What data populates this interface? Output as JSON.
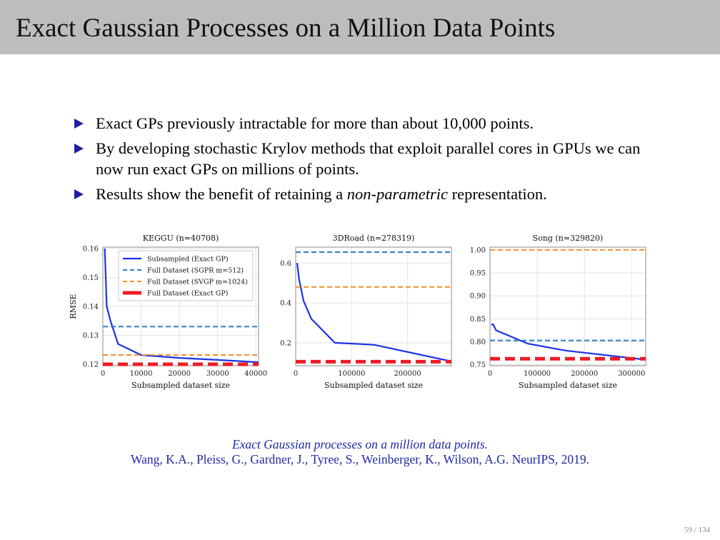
{
  "slide": {
    "title": "Exact Gaussian Processes on a Million Data Points",
    "bullets": [
      {
        "text": "Exact GPs previously intractable for more than about 10,000 points."
      },
      {
        "text": "By developing stochastic Krylov methods that exploit parallel cores in GPUs we can now run exact GPs on millions of points."
      },
      {
        "pre": "Results show the benefit of retaining a ",
        "em": "non-parametric",
        "post": " representation."
      }
    ],
    "reference_title": "Exact Gaussian processes on a million data points.",
    "reference_authors": "Wang, K.A., Pleiss, G., Gardner, J., Tyree, S., Weinberger, K., Wilson, A.G. NeurIPS, 2019.",
    "page_number": "59 / 134"
  },
  "colors": {
    "subsampled": "#1a33e6",
    "sgpr": "#2e7ebc",
    "svgp": "#f28e2b",
    "exact": "#ee1c25",
    "bullet": "#1f1fa8",
    "reference": "#1e2aa0",
    "title_bar": "#bdbdbd"
  },
  "chart_data": [
    {
      "type": "line",
      "title": "KEGGU (n=40708)",
      "xlabel": "Subsampled dataset size",
      "ylabel": "RMSE",
      "xlim": [
        0,
        40708
      ],
      "ylim": [
        0.1195,
        0.1605
      ],
      "xticks": [
        0,
        10000,
        20000,
        30000,
        40000
      ],
      "yticks": [
        0.12,
        0.13,
        0.14,
        0.15,
        0.16
      ],
      "ytick_decimals": 2,
      "grid": true,
      "legend": "top-right",
      "legend_entries": [
        "Subsampled (Exact GP)",
        "Full Dataset (SGPR m=512)",
        "Full Dataset (SVGP m=1024)",
        "Full Dataset (Exact GP)"
      ],
      "series": [
        {
          "name": "Subsampled (Exact GP)",
          "style": "solid",
          "x": [
            500,
            1000,
            2000,
            4000,
            10000,
            20000,
            30000,
            40708
          ],
          "y": [
            0.16,
            0.14,
            0.135,
            0.127,
            0.1232,
            0.1222,
            0.1215,
            0.1207
          ]
        },
        {
          "name": "Full Dataset (SGPR m=512)",
          "style": "dashed",
          "x": [
            0,
            40708
          ],
          "y": [
            0.133,
            0.133
          ]
        },
        {
          "name": "Full Dataset (SVGP m=1024)",
          "style": "dashed",
          "x": [
            0,
            40708
          ],
          "y": [
            0.1232,
            0.1232
          ]
        },
        {
          "name": "Full Dataset (Exact GP)",
          "style": "thick-dashed",
          "x": [
            0,
            40708
          ],
          "y": [
            0.12,
            0.12
          ]
        }
      ]
    },
    {
      "type": "line",
      "title": "3DRoad (n=278319)",
      "xlabel": "Subsampled dataset size",
      "ylabel": "",
      "xlim": [
        0,
        278319
      ],
      "ylim": [
        0.085,
        0.68
      ],
      "xticks": [
        0,
        100000,
        200000
      ],
      "yticks": [
        0.2,
        0.4,
        0.6
      ],
      "ytick_decimals": 1,
      "grid": true,
      "legend": "none",
      "series": [
        {
          "name": "Subsampled (Exact GP)",
          "style": "solid",
          "x": [
            2500,
            6000,
            14000,
            28000,
            70000,
            140000,
            278319
          ],
          "y": [
            0.6,
            0.52,
            0.41,
            0.32,
            0.2,
            0.19,
            0.107
          ]
        },
        {
          "name": "Full Dataset (SGPR m=512)",
          "style": "dashed",
          "x": [
            0,
            278319
          ],
          "y": [
            0.655,
            0.655
          ]
        },
        {
          "name": "Full Dataset (SVGP m=1024)",
          "style": "dashed",
          "x": [
            0,
            278319
          ],
          "y": [
            0.48,
            0.48
          ]
        },
        {
          "name": "Full Dataset (Exact GP)",
          "style": "thick-dashed",
          "x": [
            0,
            278319
          ],
          "y": [
            0.105,
            0.105
          ]
        }
      ]
    },
    {
      "type": "line",
      "title": "Song (n=329820)",
      "xlabel": "Subsampled dataset size",
      "ylabel": "",
      "xlim": [
        0,
        329820
      ],
      "ylim": [
        0.748,
        1.006
      ],
      "xticks": [
        0,
        100000,
        200000,
        300000
      ],
      "yticks": [
        0.75,
        0.8,
        0.85,
        0.9,
        0.95,
        1.0
      ],
      "ytick_decimals": 2,
      "grid": true,
      "legend": "none",
      "series": [
        {
          "name": "Subsampled (Exact GP)",
          "style": "solid",
          "x": [
            2500,
            6500,
            13000,
            80000,
            160000,
            329820
          ],
          "y": [
            0.838,
            0.838,
            0.825,
            0.796,
            0.781,
            0.761
          ]
        },
        {
          "name": "Full Dataset (SGPR m=512)",
          "style": "dashed",
          "x": [
            0,
            329820
          ],
          "y": [
            0.803,
            0.803
          ]
        },
        {
          "name": "Full Dataset (SVGP m=1024)",
          "style": "dashed",
          "x": [
            0,
            329820
          ],
          "y": [
            1.0,
            1.0
          ]
        },
        {
          "name": "Full Dataset (Exact GP)",
          "style": "thick-dashed",
          "x": [
            0,
            329820
          ],
          "y": [
            0.763,
            0.763
          ]
        }
      ]
    }
  ]
}
